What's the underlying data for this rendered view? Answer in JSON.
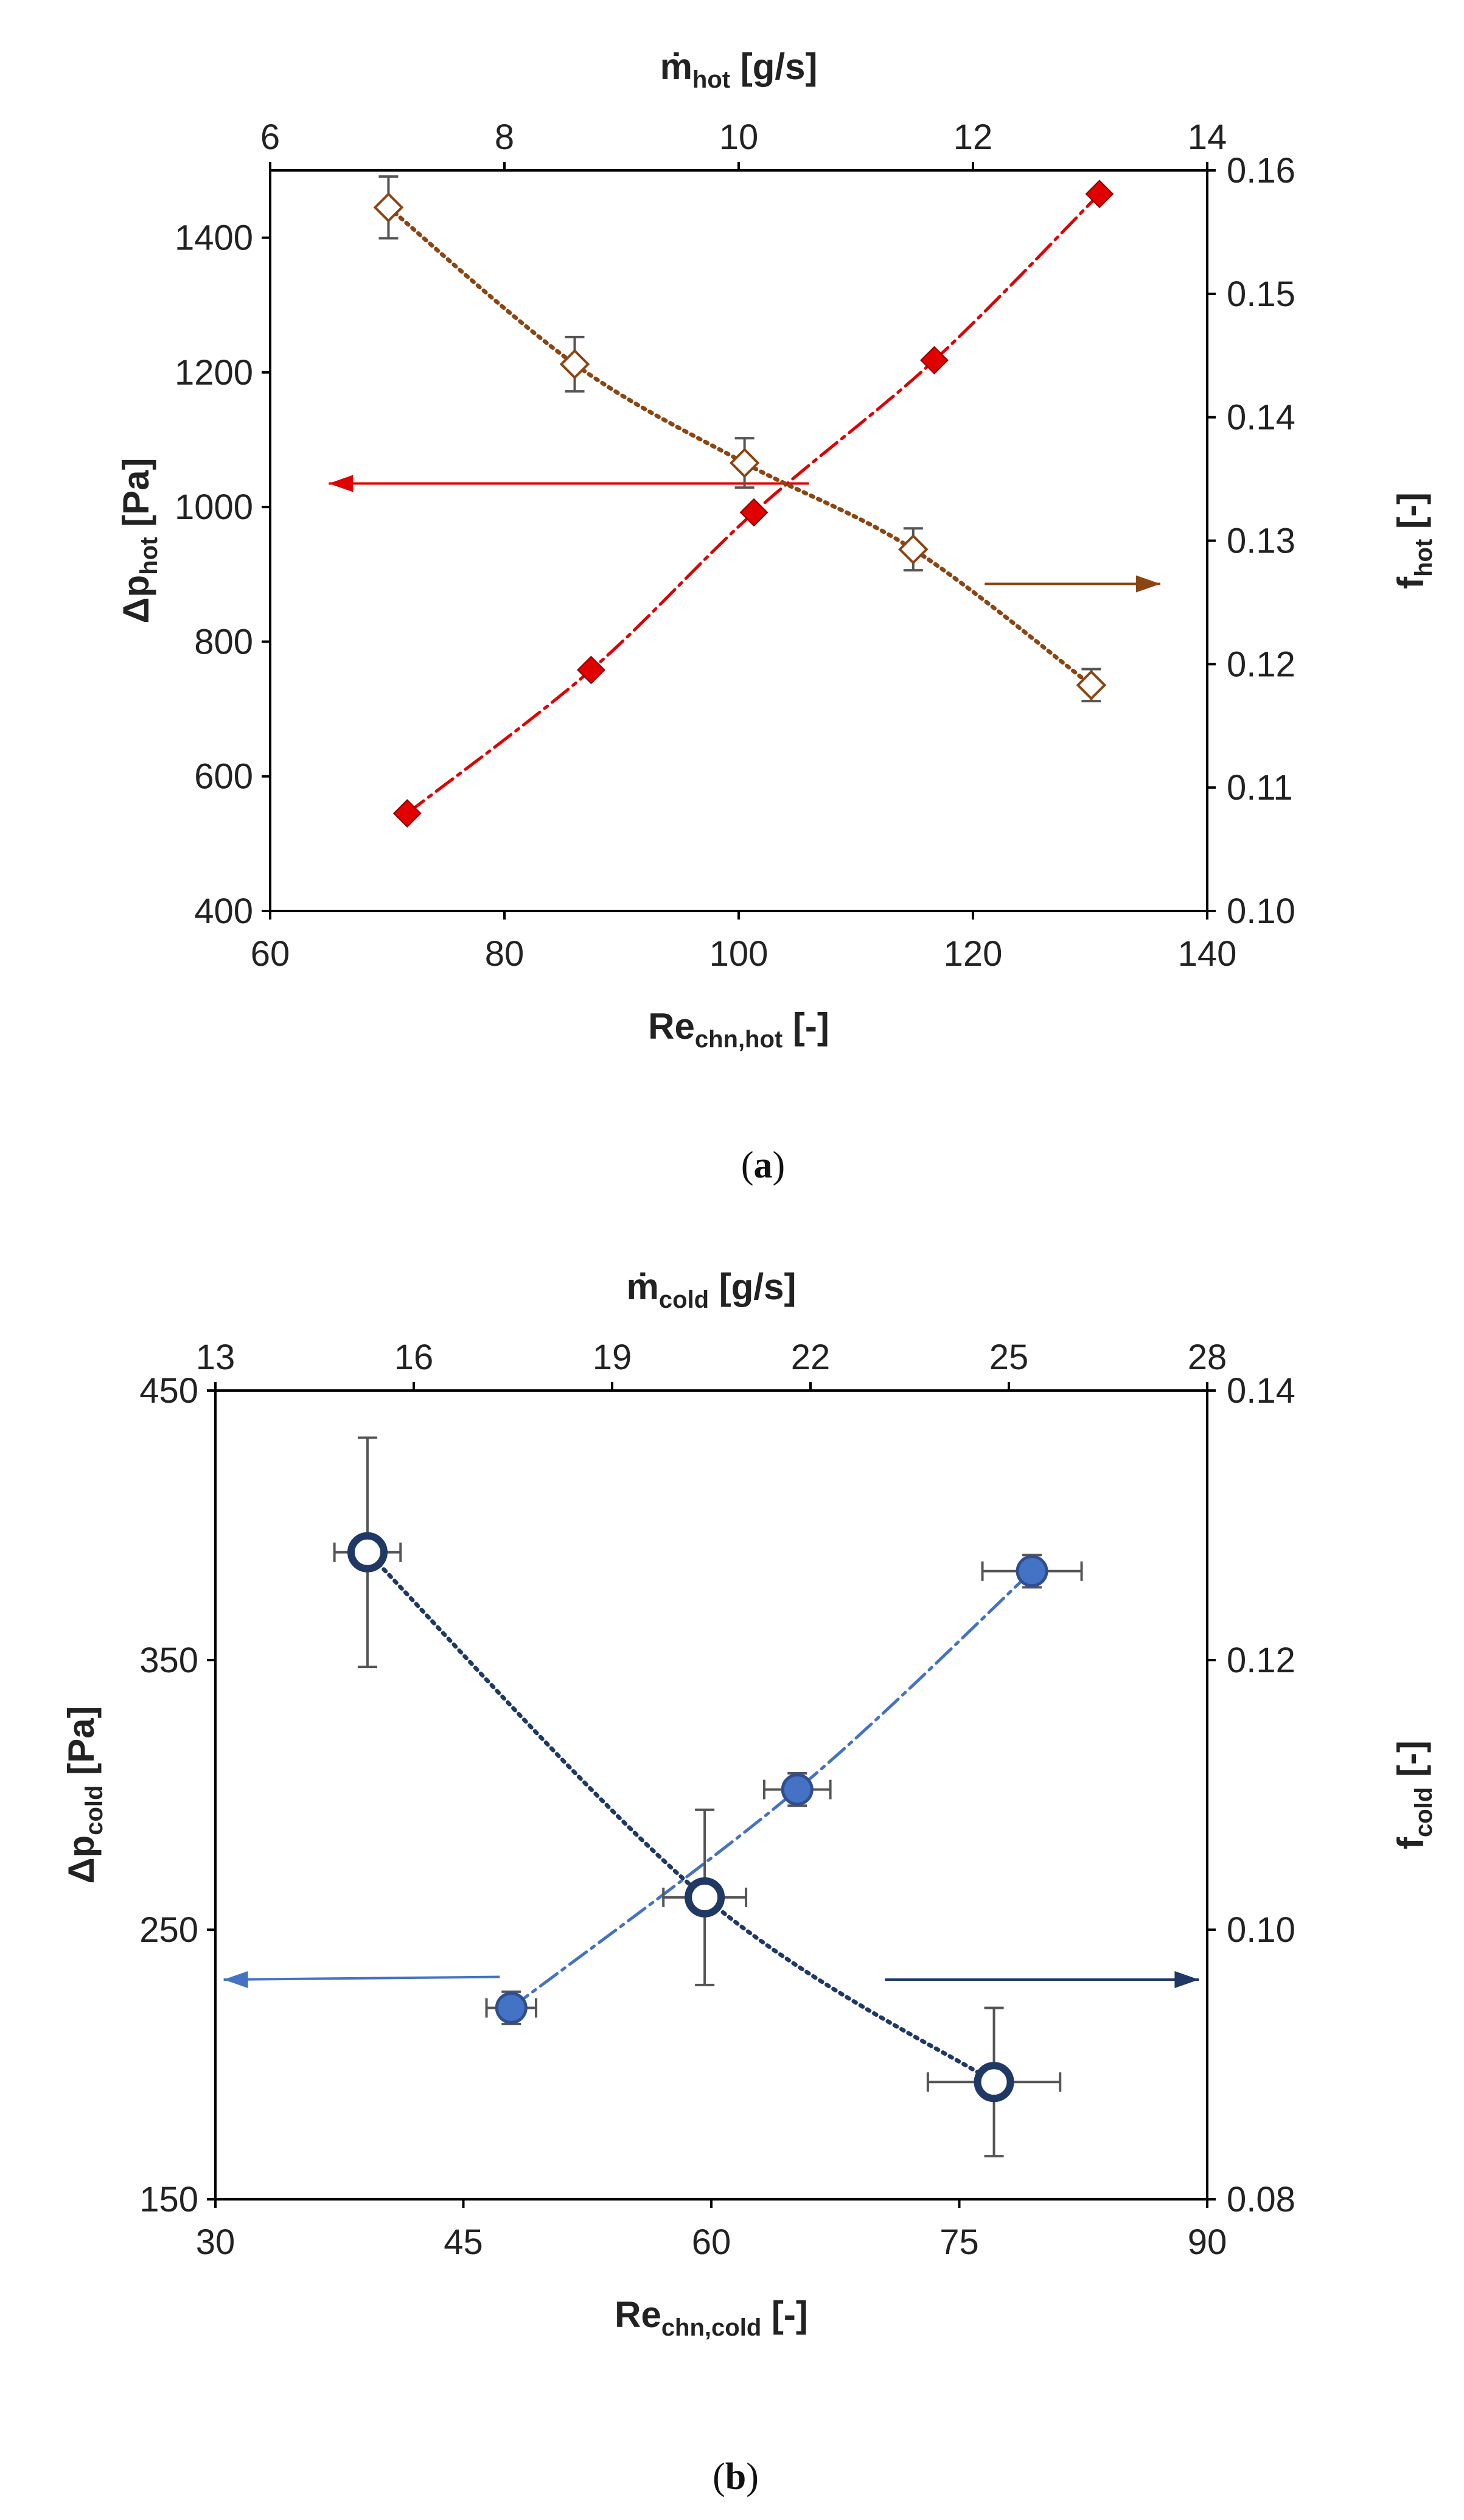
{
  "chart_data": [
    {
      "type": "scatter",
      "caption": "a",
      "x_bottom": {
        "label": "Re",
        "label_sub": "chn,hot",
        "unit": "[-]",
        "lim": [
          60,
          140
        ],
        "ticks": [
          60,
          80,
          100,
          120,
          140
        ]
      },
      "x_top": {
        "label": "ṁ",
        "label_sub": "hot",
        "unit": "[g/s]",
        "lim": [
          6,
          14
        ],
        "ticks": [
          6,
          8,
          10,
          12,
          14
        ]
      },
      "y_left": {
        "label": "Δp",
        "label_sub": "hot",
        "unit": "[Pa]",
        "lim": [
          400,
          1500
        ],
        "ticks": [
          400,
          600,
          800,
          1000,
          1200,
          1400
        ]
      },
      "y_right": {
        "label": "f",
        "label_sub": "hot",
        "unit": "[-]",
        "lim": [
          0.1,
          0.16
        ],
        "ticks": [
          "0.10",
          "0.11",
          "0.12",
          "0.13",
          "0.14",
          "0.15",
          "0.16"
        ]
      },
      "series": [
        {
          "name": "Δp_hot",
          "axis": "left",
          "marker": "diamond-filled",
          "color": "#e00000",
          "line": "dash-dot",
          "x": [
            71.7,
            87.4,
            101.3,
            116.7,
            130.8
          ],
          "y": [
            545,
            758,
            992,
            1218,
            1465
          ],
          "yerr": [
            0,
            0,
            0,
            0,
            0
          ],
          "xerr": [
            0,
            0,
            0,
            0,
            0
          ]
        },
        {
          "name": "f_hot",
          "axis": "right",
          "marker": "diamond-open-crosshair",
          "color": "#8b4513",
          "line": "dotted",
          "x": [
            70.1,
            86.0,
            100.5,
            114.9,
            130.1
          ],
          "y": [
            0.157,
            0.1443,
            0.1363,
            0.1293,
            0.1183
          ],
          "yerr": [
            0.0025,
            0.0022,
            0.002,
            0.0017,
            0.0013
          ],
          "xerr": [
            0,
            0,
            0,
            0,
            0
          ]
        }
      ],
      "arrows": [
        {
          "side": "left",
          "color": "#e00000",
          "from": [
            106,
            1035
          ],
          "to": [
            65,
            1035
          ]
        },
        {
          "side": "right",
          "color": "#8b4513",
          "from": [
            121,
            0.1265
          ],
          "to": [
            136,
            0.1265
          ]
        }
      ]
    },
    {
      "type": "scatter",
      "caption": "b",
      "x_bottom": {
        "label": "Re",
        "label_sub": "chn,cold",
        "unit": "[-]",
        "lim": [
          30,
          90
        ],
        "ticks": [
          30,
          45,
          60,
          75,
          90
        ]
      },
      "x_top": {
        "label": "ṁ",
        "label_sub": "cold",
        "unit": "[g/s]",
        "lim": [
          13,
          28
        ],
        "ticks": [
          13,
          16,
          19,
          22,
          25,
          28
        ]
      },
      "y_left": {
        "label": "Δp",
        "label_sub": "cold",
        "unit": "[Pa]",
        "lim": [
          150,
          450
        ],
        "ticks": [
          150,
          250,
          350,
          450
        ]
      },
      "y_right": {
        "label": "f",
        "label_sub": "cold",
        "unit": "[-]",
        "lim": [
          0.08,
          0.14
        ],
        "ticks": [
          "0.08",
          "0.10",
          "0.12",
          "0.14"
        ]
      },
      "series": [
        {
          "name": "Δp_cold",
          "axis": "left",
          "marker": "circle-filled",
          "color": "#4472c4",
          "line": "dash-dot",
          "x": [
            47.9,
            65.2,
            79.4
          ],
          "y": [
            221,
            302,
            383
          ],
          "yerr": [
            6,
            6,
            6
          ],
          "xerr": [
            1.5,
            2.0,
            3.0
          ]
        },
        {
          "name": "f_cold",
          "axis": "right",
          "marker": "circle-ring",
          "color": "#1f3864",
          "line": "dotted",
          "x": [
            39.2,
            59.6,
            77.1
          ],
          "y": [
            0.128,
            0.1024,
            0.0887
          ],
          "yerr": [
            0.0085,
            0.0065,
            0.0055
          ],
          "xerr": [
            2.0,
            2.5,
            4.0
          ]
        }
      ],
      "arrows": [
        {
          "side": "left",
          "color": "#4472c4",
          "from": [
            47.2,
            0.0965
          ],
          "to": [
            30.5,
            0.0963
          ]
        },
        {
          "side": "right",
          "color": "#1f3864",
          "from": [
            70.5,
            0.0963
          ],
          "to": [
            89.5,
            0.0963
          ]
        }
      ]
    }
  ]
}
